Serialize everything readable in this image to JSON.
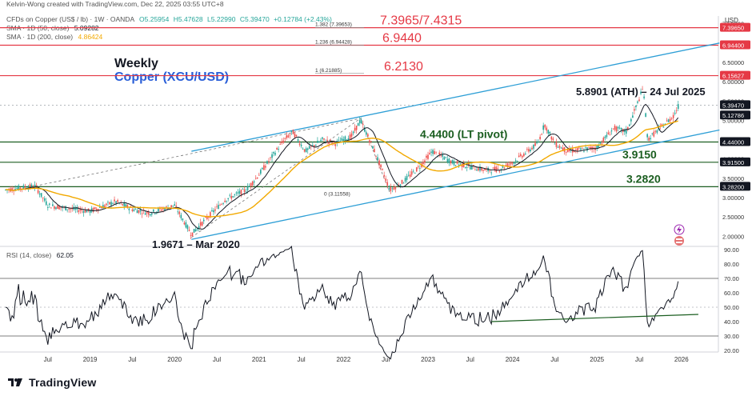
{
  "header": {
    "author_line": "Kelvin-Wong created with TradingView.com, Dec 22, 2025 03:55 UTC+8",
    "symbol_line_prefix": "CFDs on Copper (US$ / lb) · 1W · OANDA",
    "ohlc": {
      "o": "O5.25954",
      "h": "H5.47628",
      "l": "L5.22990",
      "c": "C5.39470",
      "chg": "+0.12784 (+2.43%)"
    },
    "sma50_label": "SMA · 1D (50, close)",
    "sma50_value": "5.09282",
    "sma200_label": "SMA · 1D (200, close)",
    "sma200_value": "4.86424",
    "rsi_label": "RSI (14, close)",
    "rsi_value": "62.05",
    "currency": "USD"
  },
  "titles": {
    "weekly": "Weekly",
    "instrument": "Copper (XCU/USD)"
  },
  "colors": {
    "candle_up": "#26a69a",
    "candle_down": "#ef5350",
    "sma50": "#131722",
    "sma200": "#f2a900",
    "channel": "#2e9fd6",
    "level": "#1b5e20",
    "resistance": "#e53945",
    "price_tag": "#131722"
  },
  "chart_data": [
    {
      "type": "line",
      "title": "Copper (XCU/USD) Weekly",
      "ylabel": "USD",
      "ylim": [
        1.8,
        7.7
      ],
      "x_ticks": [
        "Jul",
        "2019",
        "Jul",
        "2020",
        "Jul",
        "2021",
        "Jul",
        "2022",
        "Jul",
        "2023",
        "Jul",
        "2024",
        "Jul",
        "2025",
        "Jul",
        "2026"
      ],
      "y_ticks": [
        "2.00000",
        "2.50000",
        "3.00000",
        "3.50000",
        "4.00000",
        "4.50000",
        "5.00000",
        "5.50000",
        "6.00000",
        "6.50000",
        "7.00000",
        "7.50000"
      ],
      "series": [
        {
          "name": "SMA · 1D (50, close)",
          "values": [
            5.09282
          ]
        },
        {
          "name": "SMA · 1D (200, close)",
          "values": [
            4.86424
          ]
        }
      ],
      "price_tags": [
        {
          "value": "7.39650",
          "color": "#e53945"
        },
        {
          "value": "6.94400",
          "color": "#e53945"
        },
        {
          "value": "6.15627",
          "color": "#e53945"
        },
        {
          "value": "5.39470",
          "color": "#131722"
        },
        {
          "value": "5.12786",
          "color": "#131722"
        },
        {
          "value": "4.44000",
          "color": "#131722"
        },
        {
          "value": "3.91500",
          "color": "#131722"
        },
        {
          "value": "3.28200",
          "color": "#131722"
        }
      ],
      "fib_labels": [
        {
          "text": "1.382 (7.39653)"
        },
        {
          "text": "1.236 (6.94428)"
        },
        {
          "text": "1 (6.21885)"
        },
        {
          "text": "0 (3.11558)"
        }
      ],
      "annotations": [
        {
          "text": "7.3965/7.4315",
          "level": 7.3965,
          "color": "#e53945"
        },
        {
          "text": "6.9440",
          "level": 6.944,
          "color": "#e53945"
        },
        {
          "text": "6.2130",
          "level": 6.213,
          "color": "#e53945"
        },
        {
          "text": "5.8901 (ATH) – 24 Jul 2025",
          "color": "#131722"
        },
        {
          "text": "4.4400 (LT pivot)",
          "level": 4.44,
          "color": "#1b5e20"
        },
        {
          "text": "3.9150",
          "level": 3.915,
          "color": "#1b5e20"
        },
        {
          "text": "3.2820",
          "level": 3.282,
          "color": "#1b5e20"
        },
        {
          "text": "1.9671 – Mar 2020",
          "color": "#131722"
        }
      ]
    },
    {
      "type": "line",
      "title": "RSI (14, close)",
      "ylim": [
        20,
        90
      ],
      "y_ticks": [
        "20.00",
        "30.00",
        "40.00",
        "50.00",
        "60.00",
        "70.00",
        "80.00",
        "90.00"
      ],
      "levels": [
        70,
        50,
        30
      ],
      "series": [
        {
          "name": "RSI (14, close)",
          "values": [
            62.05
          ]
        }
      ]
    }
  ],
  "footer": {
    "brand": "TradingView"
  }
}
